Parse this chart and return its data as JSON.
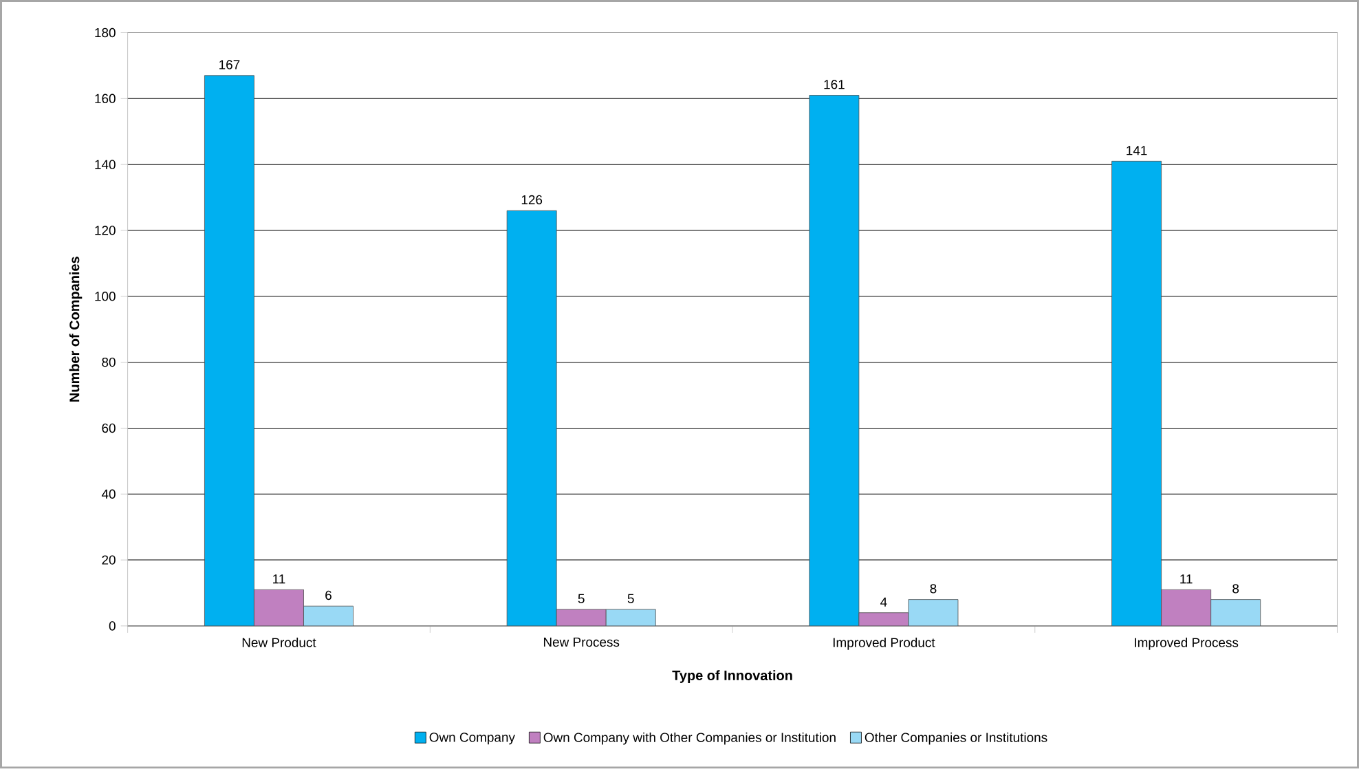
{
  "chart_data": {
    "type": "bar",
    "xlabel": "Type of Innovation",
    "ylabel": "Number of Companies",
    "categories": [
      "New Product",
      "New Process",
      "Improved Product",
      "Improved Process"
    ],
    "series": [
      {
        "name": "Own Company",
        "color": "#00b0f0",
        "values": [
          167,
          126,
          161,
          141
        ]
      },
      {
        "name": "Own Company with Other Companies or Institution",
        "color": "#c080c0",
        "values": [
          11,
          5,
          4,
          11
        ]
      },
      {
        "name": "Other Companies or Institutions",
        "color": "#99d9f5",
        "values": [
          6,
          5,
          8,
          8
        ]
      }
    ],
    "ylim": [
      0,
      180
    ],
    "yticks": [
      0,
      20,
      40,
      60,
      80,
      100,
      120,
      140,
      160,
      180
    ],
    "grid": "y",
    "legend": "bottom",
    "data_labels": true
  }
}
